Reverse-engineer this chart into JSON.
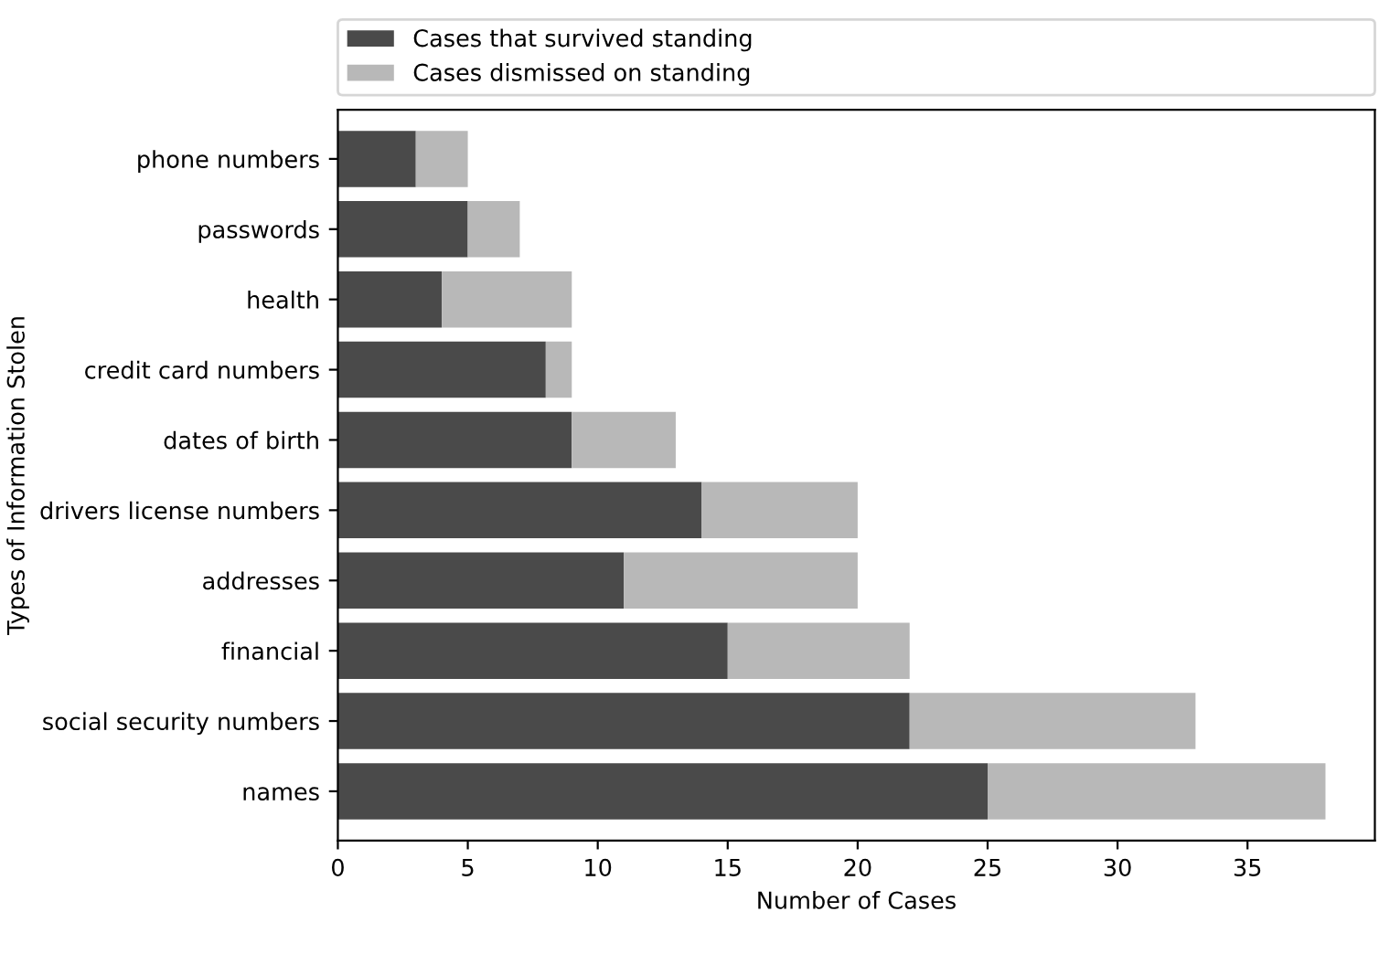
{
  "chart_data": {
    "type": "bar",
    "orientation": "horizontal",
    "stacked": true,
    "xlabel": "Number of Cases",
    "ylabel": "Types of Information Stolen",
    "categories": [
      "phone numbers",
      "passwords",
      "health",
      "credit card numbers",
      "dates of birth",
      "drivers license numbers",
      "addresses",
      "financial",
      "social security numbers",
      "names"
    ],
    "series": [
      {
        "name": "Cases that survived standing",
        "color": "#4a4a4a",
        "values": [
          3,
          5,
          4,
          8,
          9,
          14,
          11,
          15,
          22,
          25
        ]
      },
      {
        "name": "Cases dismissed on standing",
        "color": "#b8b8b8",
        "values": [
          2,
          2,
          5,
          1,
          4,
          6,
          9,
          7,
          11,
          13
        ]
      }
    ],
    "xlim": [
      0,
      39.9
    ],
    "xticks": [
      0,
      5,
      10,
      15,
      20,
      25,
      30,
      35
    ],
    "grid": false,
    "legend": "top"
  }
}
